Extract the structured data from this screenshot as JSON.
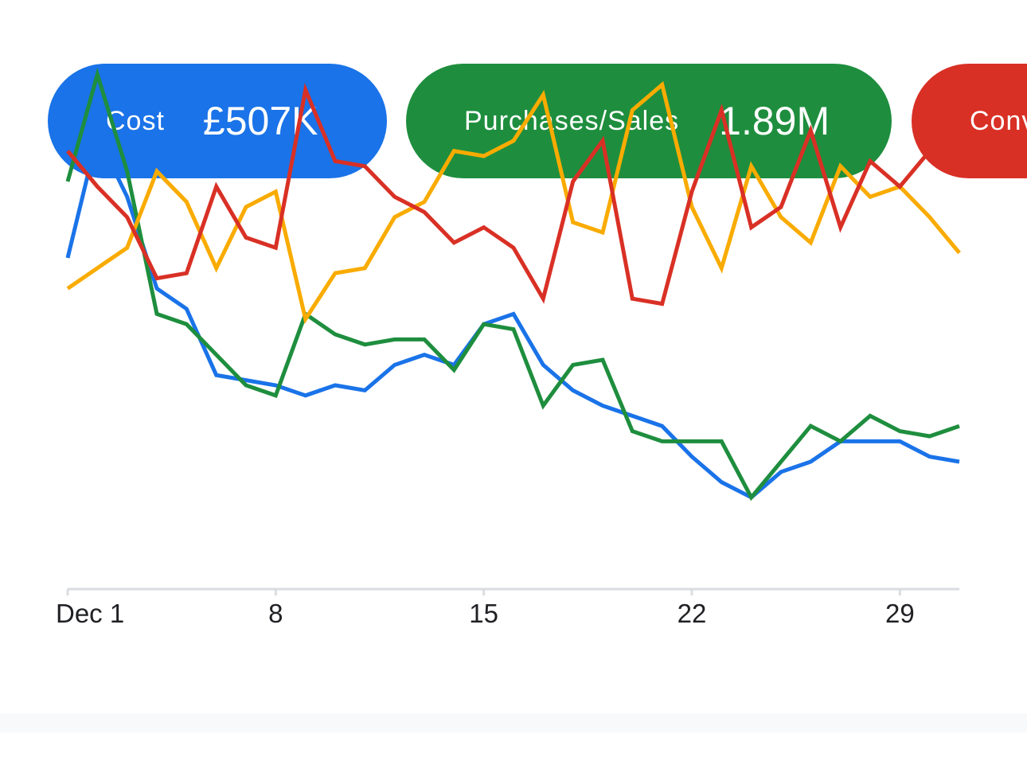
{
  "metric_pills": [
    {
      "label": "Cost",
      "value": "£507K",
      "color": "#1a73e8"
    },
    {
      "label": "Purchases/Sales",
      "value": "1.89M",
      "color": "#1e8e3e"
    },
    {
      "label": "Conv",
      "value": "",
      "color": "#d93025"
    }
  ],
  "chart_data": {
    "type": "line",
    "x": [
      1,
      2,
      3,
      4,
      5,
      6,
      7,
      8,
      9,
      10,
      11,
      12,
      13,
      14,
      15,
      16,
      17,
      18,
      19,
      20,
      21,
      22,
      23,
      24,
      25,
      26,
      27,
      28,
      29,
      30,
      31
    ],
    "xlim": [
      1,
      31
    ],
    "ylim": [
      0,
      100
    ],
    "x_ticks": [
      1,
      8,
      15,
      22,
      29
    ],
    "x_tick_labels": [
      "Dec 1",
      "8",
      "15",
      "22",
      "29"
    ],
    "grid": false,
    "legend": "none",
    "series": [
      {
        "color": "#1a73e8",
        "values": [
          65,
          89,
          77,
          59,
          55,
          42,
          41,
          40,
          38,
          40,
          39,
          44,
          46,
          44,
          52,
          54,
          44,
          39,
          36,
          34,
          32,
          26,
          21,
          18,
          23,
          25,
          29,
          29,
          29,
          26,
          25
        ]
      },
      {
        "color": "#1e8e3e",
        "values": [
          80,
          101,
          82,
          54,
          52,
          46,
          40,
          38,
          54,
          50,
          48,
          49,
          49,
          43,
          52,
          51,
          36,
          44,
          45,
          31,
          29,
          29,
          29,
          18,
          25,
          32,
          29,
          34,
          31,
          30,
          32
        ]
      },
      {
        "color": "#f9ab00",
        "values": [
          59,
          63,
          67,
          82,
          76,
          63,
          75,
          78,
          53,
          62,
          63,
          73,
          76,
          86,
          85,
          88,
          97,
          72,
          70,
          94,
          99,
          75,
          63,
          83,
          73,
          68,
          83,
          77,
          79,
          73,
          66
        ]
      },
      {
        "color": "#d93025",
        "values": [
          86,
          79,
          73,
          61,
          62,
          79,
          69,
          67,
          98,
          84,
          83,
          77,
          74,
          68,
          71,
          67,
          57,
          80,
          88,
          57,
          56,
          78,
          94,
          71,
          75,
          90,
          71,
          84,
          79,
          86,
          94
        ]
      }
    ]
  }
}
